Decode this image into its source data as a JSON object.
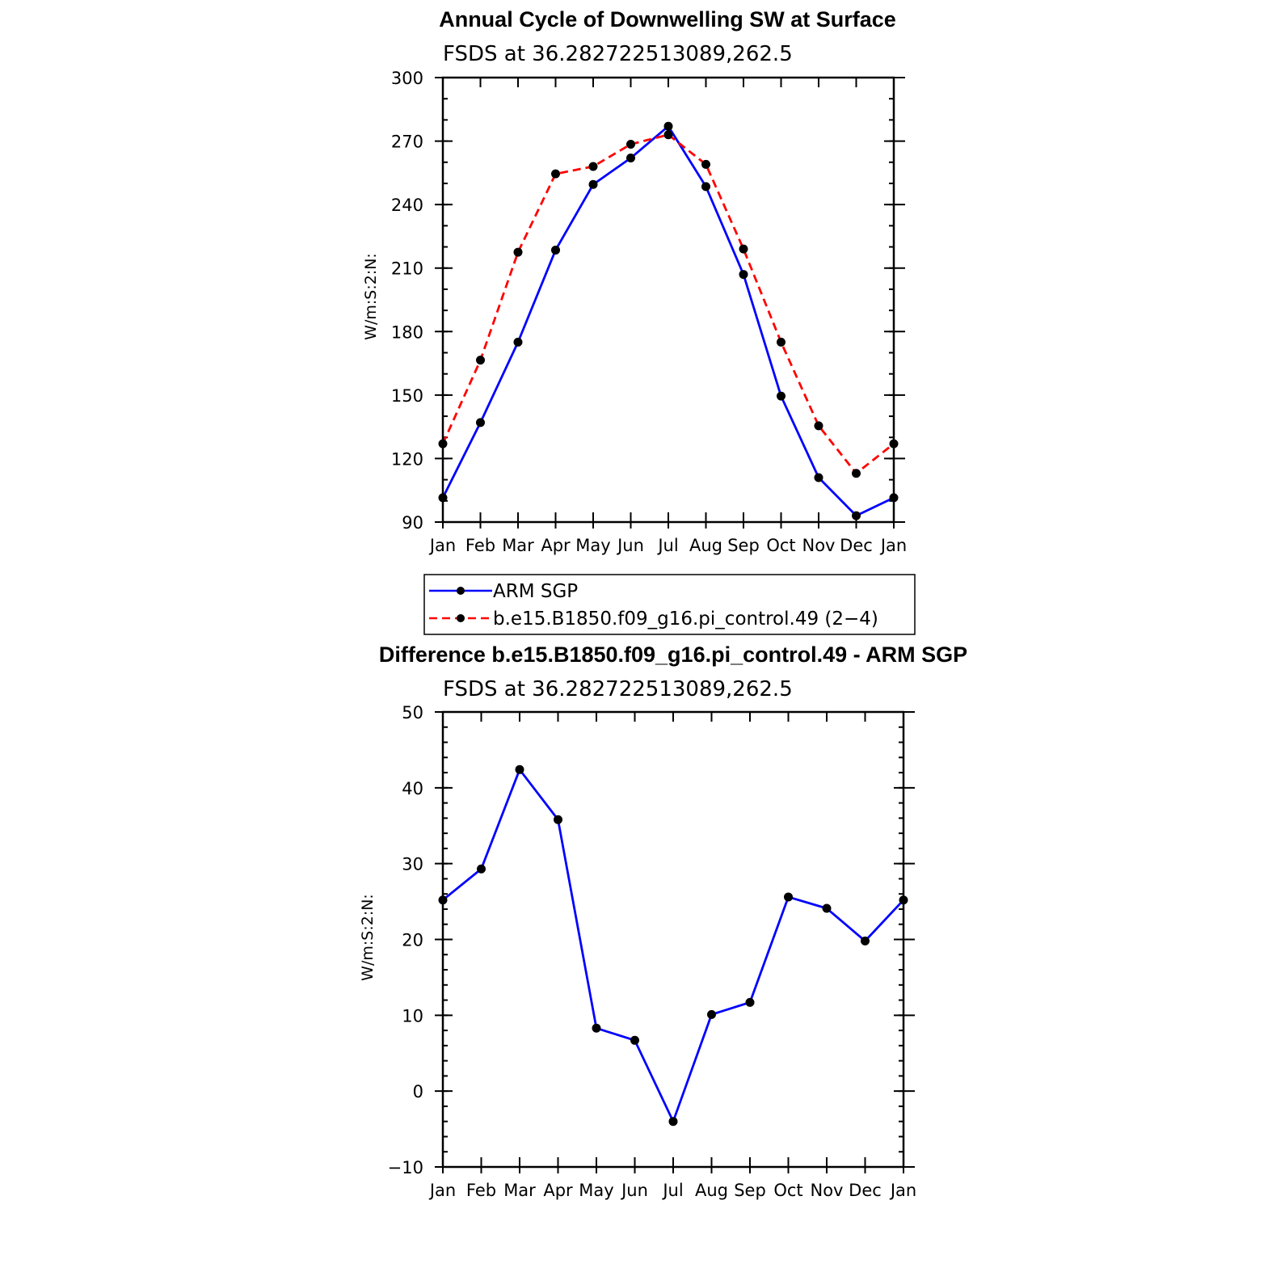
{
  "colors": {
    "obs": "#0000ff",
    "model": "#ff0000",
    "marker": "#000000"
  },
  "chart_data": [
    {
      "type": "line",
      "title": "Annual Cycle of Downwelling SW at Surface",
      "subtitle": "FSDS at 36.282722513089,262.5",
      "ylabel": "W/m:S:2:N:",
      "xlabel": "",
      "categories": [
        "Jan",
        "Feb",
        "Mar",
        "Apr",
        "May",
        "Jun",
        "Jul",
        "Aug",
        "Sep",
        "Oct",
        "Nov",
        "Dec",
        "Jan"
      ],
      "ylim": [
        90,
        300
      ],
      "yticks": [
        90,
        120,
        150,
        180,
        210,
        240,
        270,
        300
      ],
      "grid": false,
      "legend_position": "bottom",
      "series": [
        {
          "name": "ARM SGP",
          "style": "solid",
          "color": "#0000ff",
          "values": [
            101.5,
            137,
            175,
            218.5,
            249.5,
            262,
            277,
            248.5,
            207,
            149.5,
            111,
            93,
            101.5
          ]
        },
        {
          "name": "b.e15.B1850.f09_g16.pi_control.49 (2−4)",
          "style": "dashed",
          "color": "#ff0000",
          "values": [
            127,
            166.5,
            217.5,
            254.5,
            258,
            268.5,
            273,
            259,
            219,
            175,
            135.5,
            113,
            127
          ]
        }
      ]
    },
    {
      "type": "line",
      "title": "Difference b.e15.B1850.f09_g16.pi_control.49 - ARM SGP",
      "subtitle": "FSDS at 36.282722513089,262.5",
      "ylabel": "W/m:S:2:N:",
      "xlabel": "",
      "categories": [
        "Jan",
        "Feb",
        "Mar",
        "Apr",
        "May",
        "Jun",
        "Jul",
        "Aug",
        "Sep",
        "Oct",
        "Nov",
        "Dec",
        "Jan"
      ],
      "ylim": [
        -10,
        50
      ],
      "yticks": [
        -10,
        0,
        10,
        20,
        30,
        40,
        50
      ],
      "ytick_labels": [
        "−10",
        "0",
        "10",
        "20",
        "30",
        "40",
        "50"
      ],
      "grid": false,
      "series": [
        {
          "style": "solid",
          "color": "#0000ff",
          "values": [
            25.2,
            29.3,
            42.4,
            35.8,
            8.3,
            6.7,
            -4,
            10.1,
            11.7,
            25.6,
            24.1,
            19.8,
            25.2
          ]
        }
      ]
    }
  ]
}
